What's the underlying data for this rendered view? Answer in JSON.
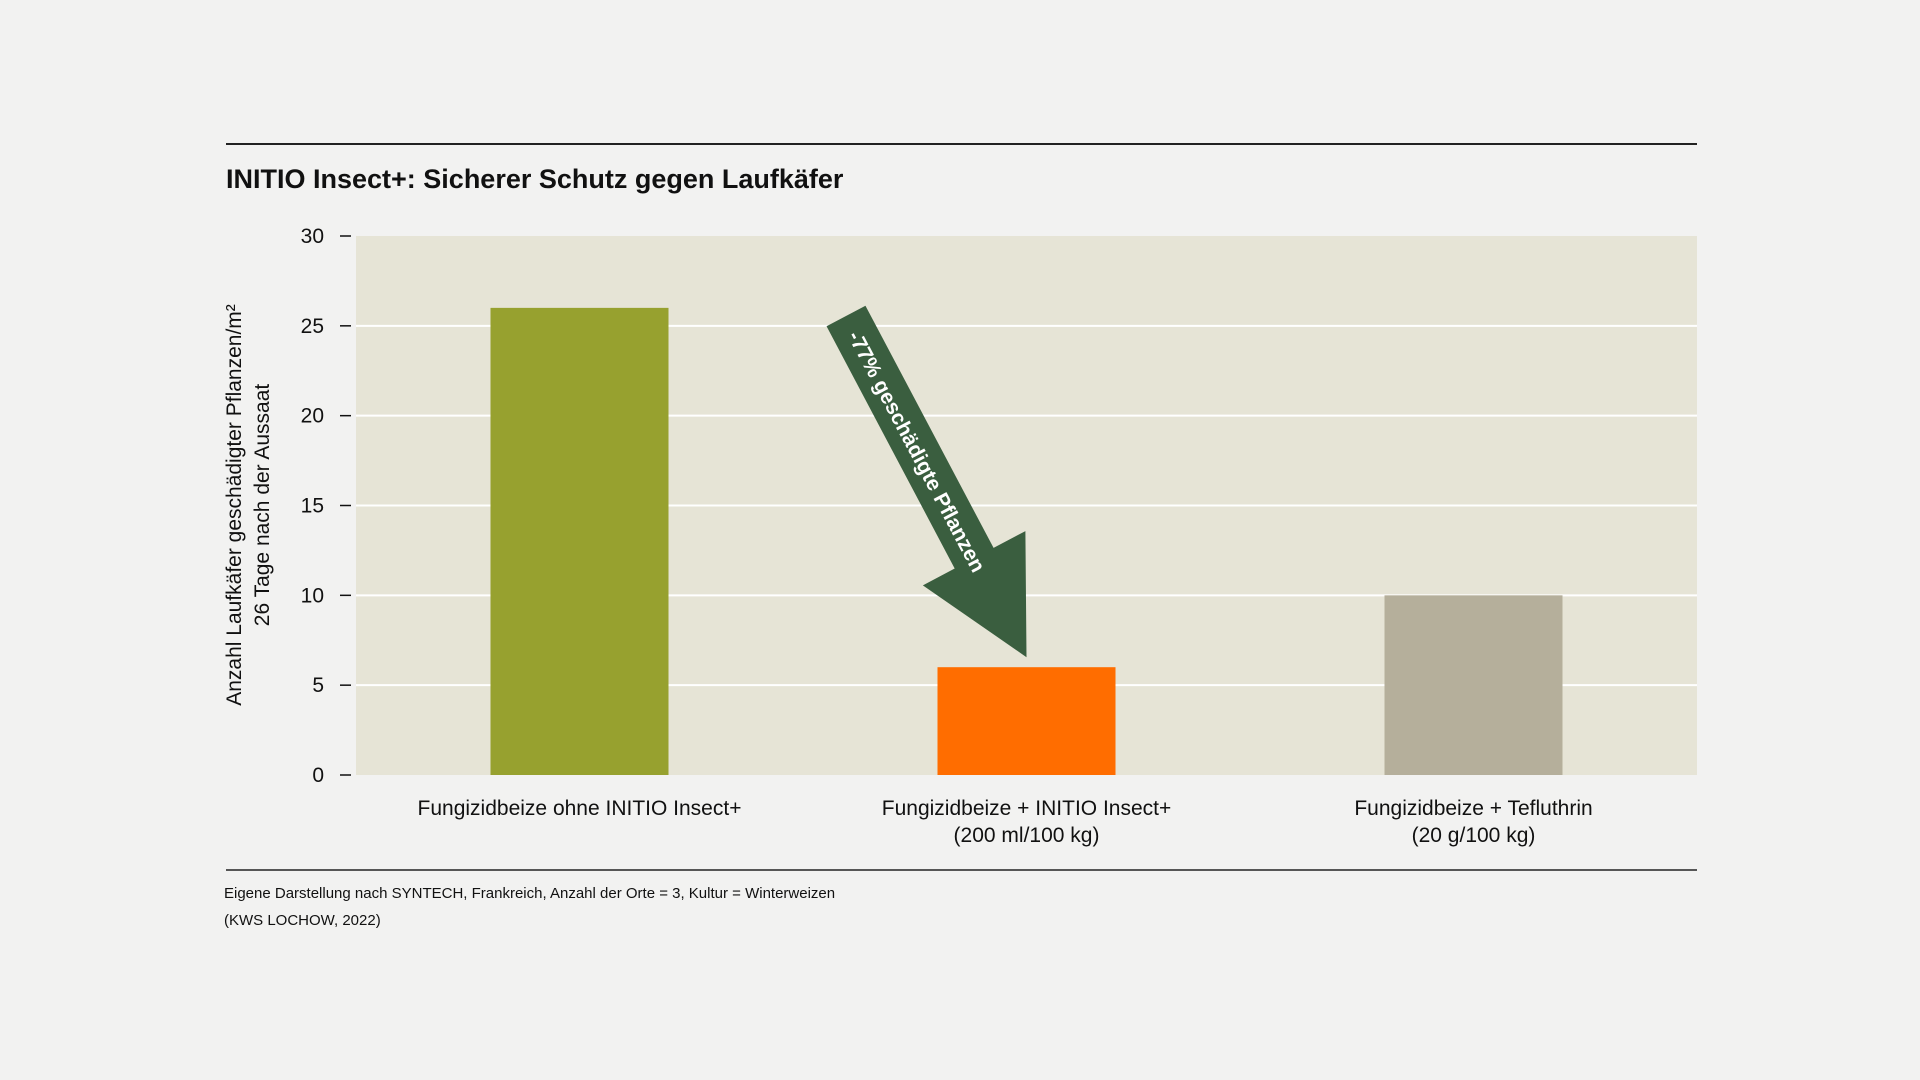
{
  "chart_data": {
    "type": "bar",
    "title": "INITIO Insect+: Sicherer Schutz gegen Laufkäfer",
    "ylabel": [
      "Anzahl Laufkäfer geschädigter Pflanzen/m²",
      "26 Tage nach der Aussaat"
    ],
    "xlabel": "",
    "ylim": [
      0,
      30
    ],
    "yticks": [
      0,
      5,
      10,
      15,
      20,
      25,
      30
    ],
    "grid": true,
    "categories": [
      [
        "Fungizidbeize ohne INITIO Insect+"
      ],
      [
        "Fungizidbeize + INITIO Insect+",
        "(200 ml/100 kg)"
      ],
      [
        "Fungizidbeize + Tefluthrin",
        "(20 g/100 kg)"
      ]
    ],
    "values": [
      26,
      6,
      10
    ],
    "bar_colors": [
      "#97a12f",
      "#ff6d00",
      "#b5af9b"
    ],
    "plot_background": "#e6e4d6",
    "annotation": {
      "text": "-77% geschädigte Pflanzen",
      "color": "#3a5e3f",
      "from_category": 0,
      "to_category": 1
    }
  },
  "footnote": {
    "line1": "Eigene Darstellung nach SYNTECH, Frankreich, Anzahl der Orte = 3, Kultur = Winterweizen",
    "line2": "(KWS LOCHOW, 2022)"
  }
}
